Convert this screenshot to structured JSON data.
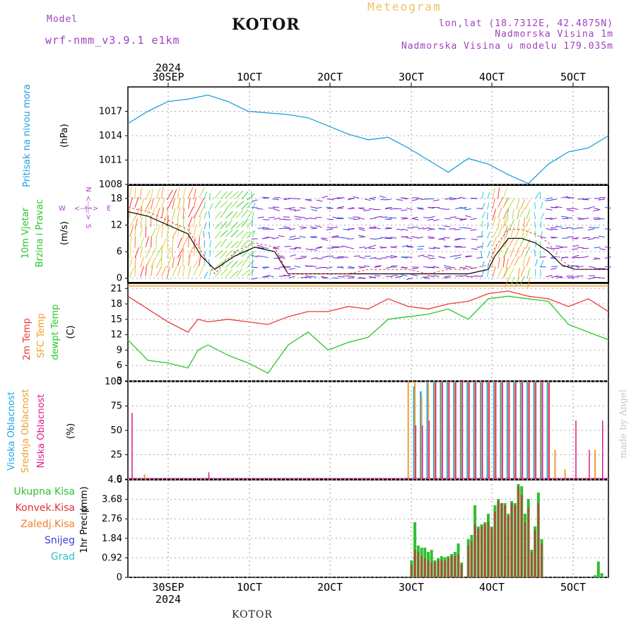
{
  "header": {
    "model_label": "Model",
    "model_name": "wrf-nmm_v3.9.1  e1km",
    "station": "KOTOR",
    "product": "Meteogram",
    "lonlat": "lon,lat (18.7312E, 42.4875N)",
    "elevation": "Nadmorska Visina 1m",
    "model_elevation": "Nadmorska Visina u modelu 179.035m",
    "footer_station": "KOTOR",
    "credit": "made by Angel"
  },
  "time_axis": {
    "year": "2024",
    "top_labels": [
      "30SEP",
      "1OCT",
      "2OCT",
      "3OCT",
      "4OCT",
      "5OCT"
    ],
    "bottom_labels": [
      "30SEP",
      "1OCT",
      "2OCT",
      "3OCT",
      "4OCT",
      "5OCT"
    ]
  },
  "colors": {
    "pressure": "#1ca0e0",
    "temp2m": "#ee3a3a",
    "sfc_temp": "#f0a020",
    "dewpoint": "#28c828",
    "high_cloud": "#18a8e8",
    "mid_cloud": "#e8a030",
    "low_cloud": "#e01a8a",
    "total_precip": "#30c030",
    "conv_precip": "#c04040",
    "header_purple": "#a040c0",
    "header_orange": "#f0c060"
  },
  "chart_data": [
    {
      "type": "line",
      "panel": "pressure",
      "ylabel_left": "Pritisak na nivou mora",
      "unit": "(hPa)",
      "ylim": [
        1008,
        1020
      ],
      "yticks": [
        "1017",
        "1014",
        "1011",
        "1008"
      ],
      "ytick_values": [
        1017,
        1014,
        1011,
        1008
      ],
      "x_hours": [
        0,
        6,
        12,
        18,
        24,
        30,
        36,
        42,
        48,
        54,
        60,
        66,
        72,
        78,
        84,
        90,
        96,
        102,
        108,
        114,
        120,
        126,
        132,
        138,
        144
      ],
      "series": [
        {
          "values": [
            1015.5,
            1017.0,
            1018.2,
            1018.5,
            1019.0,
            1018.2,
            1017.0,
            1016.8,
            1016.6,
            1016.2,
            1015.2,
            1014.2,
            1013.5,
            1013.8,
            1012.5,
            1011.0,
            1009.5,
            1011.2,
            1010.5,
            1009.2,
            1008.1,
            1010.5,
            1012.0,
            1012.5,
            1014.0
          ]
        }
      ]
    },
    {
      "type": "line",
      "panel": "wind",
      "ylabel_left_1": "10m Vjetar",
      "ylabel_left_2": "Brzina i Pravac",
      "unit": "(m/s)",
      "compass": {
        "n": "N",
        "s": "S",
        "w": "W",
        "e": "E",
        "arrows": "<--|-->"
      },
      "ylim": [
        -1,
        21
      ],
      "yticks": [
        "18",
        "12",
        "6",
        "0"
      ],
      "ytick_values": [
        18,
        12,
        6,
        0
      ],
      "x_hours": [
        0,
        6,
        12,
        18,
        22,
        26,
        32,
        38,
        44,
        48,
        54,
        60,
        66,
        72,
        78,
        84,
        90,
        96,
        102,
        108,
        110,
        114,
        118,
        122,
        126,
        130,
        134,
        138,
        144
      ],
      "series": [
        {
          "values": [
            15,
            14,
            12,
            10,
            5,
            2,
            5,
            7,
            6,
            1,
            1,
            1,
            1,
            1,
            1,
            1,
            1,
            1,
            1,
            2,
            5,
            9,
            9,
            8,
            6,
            3,
            2,
            2,
            2
          ]
        },
        {
          "values": [
            16,
            15,
            13,
            11,
            6,
            1,
            6,
            8,
            7,
            1,
            1,
            1,
            1,
            2,
            2,
            2,
            1,
            2,
            2,
            3,
            7,
            11,
            11,
            10,
            8,
            4,
            2,
            2,
            2
          ]
        }
      ]
    },
    {
      "type": "line",
      "panel": "temperature",
      "ylabel_left_1": "2m Temp",
      "ylabel_left_2": "SFC Temp",
      "ylabel_left_3": "dewpt Temp",
      "unit": "(C)",
      "ylim": [
        3,
        22
      ],
      "yticks": [
        "21",
        "18",
        "15",
        "12",
        "9",
        "6",
        "3"
      ],
      "ytick_values": [
        21,
        18,
        15,
        12,
        9,
        6,
        3
      ],
      "x_hours": [
        0,
        6,
        12,
        18,
        21,
        24,
        30,
        36,
        42,
        48,
        54,
        60,
        66,
        72,
        78,
        84,
        90,
        96,
        102,
        108,
        114,
        120,
        126,
        132,
        138,
        144
      ],
      "series": [
        {
          "values": [
            19.5,
            17.0,
            14.5,
            12.5,
            15.0,
            14.5,
            15.0,
            14.5,
            14.0,
            15.5,
            16.5,
            16.5,
            17.5,
            17.0,
            19.0,
            17.5,
            17.0,
            18.0,
            18.5,
            20.0,
            20.5,
            19.5,
            19.0,
            17.5,
            19.0,
            16.5
          ]
        },
        {
          "values": [
            21.5,
            21.5,
            21.5,
            21.5,
            21.5,
            21.5,
            21.5,
            21.5,
            21.5,
            21.5,
            21.5,
            21.5,
            21.5,
            21.5,
            21.5,
            21.5,
            21.5,
            21.5,
            21.5,
            21.5,
            21.5,
            21.5,
            21.5,
            21.5,
            21.5,
            21.5
          ]
        },
        {
          "values": [
            11.0,
            7.0,
            6.5,
            5.5,
            9.0,
            10.0,
            8.0,
            6.5,
            4.5,
            10.0,
            12.5,
            9.0,
            10.5,
            11.5,
            15.0,
            15.5,
            16.0,
            17.0,
            15.0,
            19.0,
            19.5,
            19.0,
            18.5,
            14.0,
            12.5,
            11.0
          ]
        }
      ]
    },
    {
      "type": "bar",
      "panel": "cloud",
      "ylabel_left_1": "Visoka Oblacnost",
      "ylabel_left_2": "Srednja Oblacnost",
      "ylabel_left_3": "Niska Oblacnost",
      "unit": "(%)",
      "ylim": [
        0,
        100
      ],
      "yticks": [
        "100",
        "75",
        "50",
        "25",
        "0"
      ],
      "ytick_values": [
        100,
        75,
        50,
        25,
        0
      ],
      "x_hours": [
        1,
        5,
        12,
        24,
        36,
        48,
        60,
        72,
        84,
        86,
        88,
        90,
        92,
        94,
        96,
        98,
        100,
        102,
        104,
        106,
        108,
        110,
        112,
        114,
        116,
        118,
        120,
        122,
        124,
        126,
        128,
        131,
        134,
        138,
        140,
        142
      ],
      "series": [
        {
          "values": [
            0,
            0,
            0,
            0,
            0,
            0,
            0,
            0,
            0,
            95,
            90,
            100,
            100,
            100,
            100,
            100,
            100,
            100,
            100,
            100,
            100,
            100,
            100,
            100,
            100,
            100,
            100,
            100,
            100,
            100,
            0,
            0,
            0,
            0,
            0,
            0
          ]
        },
        {
          "values": [
            0,
            5,
            0,
            0,
            0,
            0,
            0,
            0,
            100,
            100,
            85,
            100,
            100,
            100,
            100,
            100,
            100,
            100,
            100,
            100,
            100,
            100,
            100,
            100,
            100,
            100,
            100,
            100,
            100,
            100,
            30,
            10,
            0,
            0,
            30,
            0
          ]
        },
        {
          "values": [
            68,
            0,
            0,
            7,
            0,
            0,
            0,
            0,
            0,
            55,
            55,
            60,
            100,
            100,
            100,
            100,
            100,
            100,
            100,
            100,
            100,
            100,
            100,
            100,
            100,
            100,
            100,
            100,
            100,
            100,
            0,
            0,
            60,
            30,
            0,
            60
          ]
        }
      ]
    },
    {
      "type": "bar",
      "panel": "precip",
      "ylabel_left": "1hr Precip",
      "unit": "(mm)",
      "legend": [
        "Ukupna Kisa",
        "Konvek.Kisa",
        "Zaledj.Kisa",
        "Snijeg",
        "Grad"
      ],
      "legend_colors": [
        "#30c030",
        "#e83030",
        "#f08030",
        "#4040e0",
        "#30c0c0"
      ],
      "ylim": [
        0,
        4.6
      ],
      "yticks": [
        "4.6",
        "3.68",
        "2.76",
        "1.84",
        "0.92",
        "0"
      ],
      "ytick_values": [
        4.6,
        3.68,
        2.76,
        1.84,
        0.92,
        0
      ],
      "x_hours": [
        85,
        86,
        87,
        88,
        89,
        90,
        91,
        92,
        93,
        94,
        95,
        96,
        97,
        98,
        99,
        100,
        101,
        102,
        103,
        104,
        105,
        106,
        107,
        108,
        109,
        110,
        111,
        112,
        113,
        114,
        115,
        116,
        117,
        118,
        119,
        120,
        121,
        122,
        123,
        124,
        125,
        126,
        127,
        128,
        140,
        141,
        142
      ],
      "series": [
        {
          "values": [
            0.8,
            2.6,
            1.5,
            1.4,
            1.4,
            1.2,
            1.3,
            0.8,
            0.9,
            1.0,
            0.95,
            1.0,
            1.1,
            1.2,
            1.6,
            0.7,
            0,
            1.8,
            2.0,
            3.4,
            2.4,
            2.5,
            2.6,
            3.0,
            2.4,
            3.4,
            3.7,
            3.5,
            3.5,
            3.0,
            3.6,
            3.5,
            4.4,
            4.3,
            3.0,
            3.7,
            1.3,
            2.4,
            4.0,
            1.8,
            0,
            0,
            0,
            0,
            0.1,
            0.75,
            0.2
          ]
        },
        {
          "values": [
            0.6,
            1.3,
            1.2,
            1.0,
            0.9,
            0.8,
            0.7,
            0.7,
            0.8,
            0.8,
            0.8,
            0.9,
            1.0,
            1.0,
            1.1,
            0.6,
            0,
            1.5,
            1.7,
            2.5,
            2.3,
            2.4,
            2.5,
            2.6,
            2.3,
            3.1,
            3.6,
            3.5,
            3.4,
            2.9,
            3.5,
            3.4,
            4.3,
            3.9,
            2.6,
            3.3,
            1.2,
            2.2,
            3.5,
            1.6,
            0,
            0,
            0,
            0,
            0,
            0,
            0
          ]
        }
      ]
    }
  ]
}
